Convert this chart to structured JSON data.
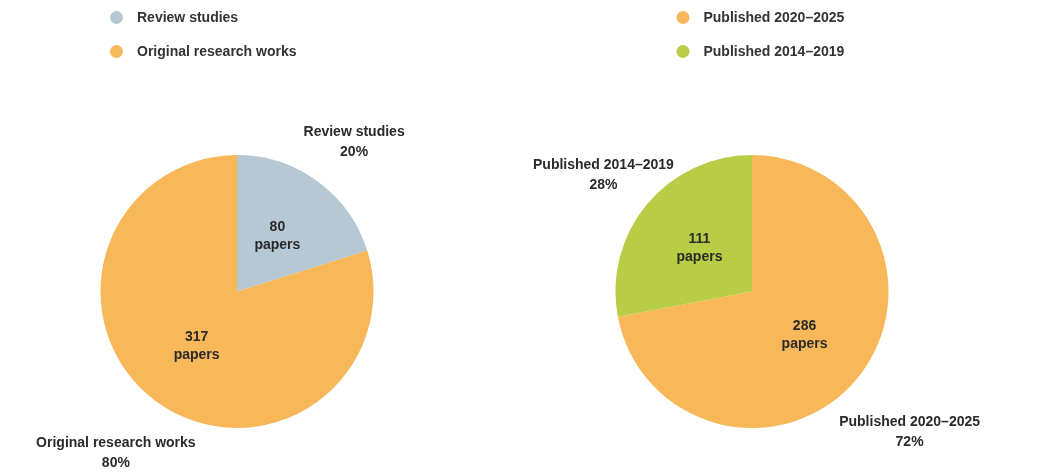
{
  "chart_data": [
    {
      "type": "pie",
      "categories": [
        "Review studies",
        "Original research works"
      ],
      "values": [
        80,
        317
      ],
      "colors": [
        "#b5c8d4",
        "#f8b85a"
      ],
      "value_labels": [
        "80 papers",
        "317 papers"
      ],
      "annotations": [
        {
          "text": "20%",
          "x": "Review studies"
        },
        {
          "text": "80%",
          "x": "Original research works"
        }
      ],
      "legend": "top left"
    },
    {
      "type": "pie",
      "categories": [
        "Published 2020–2025",
        "Published 2014–2019"
      ],
      "values": [
        286,
        111
      ],
      "colors": [
        "#f8b85a",
        "#b9cc45"
      ],
      "value_labels": [
        "286 papers",
        "111 papers"
      ],
      "annotations": [
        {
          "text": "72%",
          "x": "Published 2020–2025"
        },
        {
          "text": "28%",
          "x": "Published 2014–2019"
        }
      ],
      "legend": "top"
    }
  ]
}
